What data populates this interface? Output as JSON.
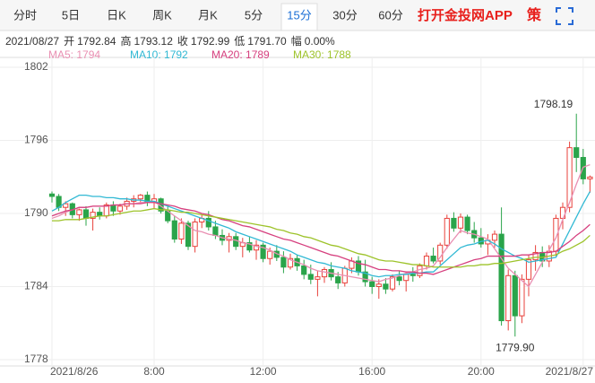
{
  "chart_data": {
    "type": "candlestick",
    "tabs": [
      "分时",
      "5日",
      "日K",
      "周K",
      "月K",
      "5分",
      "15分",
      "30分",
      "60分"
    ],
    "active_tab": 6,
    "brand": "打开金投网APP",
    "strategy": "策",
    "info": {
      "date": "2021/08/27",
      "items": [
        {
          "label": "开",
          "value": "1792.84"
        },
        {
          "label": "高",
          "value": "1793.12"
        },
        {
          "label": "收",
          "value": "1792.99"
        },
        {
          "label": "低",
          "value": "1791.70"
        },
        {
          "label": "幅",
          "value": "0.00%"
        }
      ]
    },
    "up_color": "#e8413b",
    "down_color": "#2aa44a",
    "ylim": [
      1778,
      1802
    ],
    "yticks": [
      1778,
      1784,
      1790,
      1796,
      1802
    ],
    "grid": true,
    "categories": [
      "2021/8/26",
      null,
      null,
      null,
      null,
      null,
      null,
      null,
      null,
      null,
      null,
      null,
      null,
      null,
      null,
      "8:00",
      null,
      null,
      null,
      null,
      null,
      null,
      null,
      null,
      null,
      null,
      null,
      null,
      null,
      null,
      null,
      "12:00",
      null,
      null,
      null,
      null,
      null,
      null,
      null,
      null,
      null,
      null,
      null,
      null,
      null,
      null,
      null,
      "16:00",
      null,
      null,
      null,
      null,
      null,
      null,
      null,
      null,
      null,
      null,
      null,
      null,
      null,
      null,
      null,
      "20:00",
      null,
      null,
      null,
      null,
      null,
      null,
      null,
      null,
      null,
      null,
      null,
      null,
      null,
      null,
      "2021/8/27",
      null
    ],
    "ohlc": [
      [
        1791.6,
        1791.8,
        1790.9,
        1791.4
      ],
      [
        1791.4,
        1791.6,
        1790.2,
        1790.5
      ],
      [
        1790.5,
        1791.0,
        1789.8,
        1790.8
      ],
      [
        1790.8,
        1790.9,
        1789.6,
        1789.9
      ],
      [
        1789.9,
        1790.4,
        1789.4,
        1790.3
      ],
      [
        1790.3,
        1790.6,
        1789.0,
        1789.6
      ],
      [
        1789.6,
        1790.4,
        1788.6,
        1790.1
      ],
      [
        1790.1,
        1790.5,
        1789.5,
        1789.8
      ],
      [
        1789.8,
        1790.9,
        1789.6,
        1790.7
      ],
      [
        1790.7,
        1791.0,
        1789.8,
        1790.2
      ],
      [
        1790.2,
        1790.8,
        1789.9,
        1790.6
      ],
      [
        1790.6,
        1791.3,
        1790.3,
        1791.0
      ],
      [
        1791.0,
        1791.5,
        1790.5,
        1791.2
      ],
      [
        1791.2,
        1791.6,
        1790.8,
        1791.5
      ],
      [
        1791.5,
        1791.8,
        1790.6,
        1790.9
      ],
      [
        1790.9,
        1791.6,
        1790.4,
        1791.2
      ],
      [
        1791.2,
        1791.3,
        1790.0,
        1790.2
      ],
      [
        1790.2,
        1790.6,
        1789.2,
        1789.4
      ],
      [
        1789.4,
        1789.8,
        1787.6,
        1787.9
      ],
      [
        1787.9,
        1789.6,
        1787.5,
        1789.2
      ],
      [
        1789.2,
        1789.4,
        1787.0,
        1787.3
      ],
      [
        1787.3,
        1789.6,
        1786.8,
        1789.3
      ],
      [
        1789.3,
        1789.9,
        1788.8,
        1789.6
      ],
      [
        1789.6,
        1790.2,
        1788.6,
        1788.9
      ],
      [
        1788.9,
        1789.4,
        1787.9,
        1788.2
      ],
      [
        1788.2,
        1788.7,
        1787.4,
        1787.8
      ],
      [
        1787.8,
        1788.4,
        1786.8,
        1788.1
      ],
      [
        1788.1,
        1788.4,
        1787.0,
        1787.3
      ],
      [
        1787.3,
        1788.0,
        1786.4,
        1787.6
      ],
      [
        1787.6,
        1788.1,
        1786.8,
        1787.0
      ],
      [
        1787.0,
        1787.8,
        1786.2,
        1787.4
      ],
      [
        1787.4,
        1787.6,
        1786.0,
        1786.3
      ],
      [
        1786.3,
        1787.2,
        1785.8,
        1786.9
      ],
      [
        1786.9,
        1787.4,
        1786.1,
        1786.4
      ],
      [
        1786.4,
        1786.9,
        1785.1,
        1785.6
      ],
      [
        1785.6,
        1786.7,
        1785.4,
        1786.3
      ],
      [
        1786.3,
        1786.6,
        1785.3,
        1785.7
      ],
      [
        1785.7,
        1786.2,
        1784.6,
        1785.0
      ],
      [
        1785.0,
        1785.8,
        1784.2,
        1784.6
      ],
      [
        1784.6,
        1785.3,
        1783.2,
        1784.8
      ],
      [
        1784.8,
        1785.6,
        1784.3,
        1785.4
      ],
      [
        1785.4,
        1786.0,
        1784.5,
        1784.8
      ],
      [
        1784.8,
        1785.2,
        1783.8,
        1784.3
      ],
      [
        1784.3,
        1785.7,
        1784.0,
        1785.5
      ],
      [
        1785.5,
        1786.4,
        1785.1,
        1786.1
      ],
      [
        1786.1,
        1786.5,
        1784.9,
        1785.2
      ],
      [
        1785.2,
        1786.2,
        1784.0,
        1784.4
      ],
      [
        1784.4,
        1784.8,
        1783.4,
        1784.0
      ],
      [
        1784.0,
        1784.6,
        1783.0,
        1784.2
      ],
      [
        1784.2,
        1784.7,
        1783.4,
        1783.8
      ],
      [
        1783.8,
        1785.0,
        1783.6,
        1784.8
      ],
      [
        1784.8,
        1785.3,
        1784.1,
        1784.5
      ],
      [
        1784.5,
        1785.2,
        1783.6,
        1785.0
      ],
      [
        1785.0,
        1785.6,
        1784.4,
        1784.9
      ],
      [
        1784.9,
        1785.9,
        1784.7,
        1785.7
      ],
      [
        1785.7,
        1786.8,
        1785.4,
        1786.5
      ],
      [
        1786.5,
        1787.2,
        1785.9,
        1786.1
      ],
      [
        1786.1,
        1787.6,
        1785.8,
        1787.4
      ],
      [
        1787.4,
        1789.9,
        1787.1,
        1789.6
      ],
      [
        1789.6,
        1790.1,
        1788.5,
        1788.8
      ],
      [
        1788.8,
        1790.0,
        1788.4,
        1789.7
      ],
      [
        1789.7,
        1789.9,
        1788.3,
        1788.6
      ],
      [
        1788.6,
        1789.3,
        1787.6,
        1788.0
      ],
      [
        1788.0,
        1788.8,
        1787.2,
        1787.5
      ],
      [
        1787.5,
        1788.3,
        1786.6,
        1787.8
      ],
      [
        1787.8,
        1788.6,
        1787.2,
        1788.3
      ],
      [
        1788.3,
        1790.5,
        1780.8,
        1781.2
      ],
      [
        1781.2,
        1785.4,
        1780.4,
        1784.9
      ],
      [
        1784.9,
        1785.3,
        1779.9,
        1781.6
      ],
      [
        1781.6,
        1785.0,
        1781.0,
        1784.6
      ],
      [
        1784.6,
        1786.6,
        1783.2,
        1786.2
      ],
      [
        1786.2,
        1787.4,
        1785.3,
        1786.8
      ],
      [
        1786.8,
        1787.3,
        1785.6,
        1786.1
      ],
      [
        1786.1,
        1787.4,
        1785.6,
        1786.9
      ],
      [
        1786.9,
        1789.9,
        1786.5,
        1789.6
      ],
      [
        1789.6,
        1790.9,
        1788.7,
        1790.5
      ],
      [
        1790.5,
        1795.9,
        1790.1,
        1795.4
      ],
      [
        1795.4,
        1798.19,
        1793.4,
        1794.6
      ],
      [
        1794.6,
        1795.3,
        1792.4,
        1792.84
      ],
      [
        1792.84,
        1793.12,
        1791.7,
        1792.99
      ]
    ],
    "annotations": [
      {
        "label": "1798.19"
      },
      {
        "label": "1779.90"
      }
    ],
    "series": [
      {
        "name": "MA5: 1794",
        "color": "#e98fb2",
        "values": [
          1789.6,
          1789.8,
          1790.1,
          1790.3,
          1790.5,
          1790.5,
          1790.6,
          1790.6,
          1790.6,
          1790.7,
          1790.7,
          1790.8,
          1790.8,
          1790.9,
          1790.9,
          1791.0,
          1790.6,
          1790.2,
          1789.8,
          1789.4,
          1789.0,
          1788.6,
          1788.5,
          1788.3,
          1788.2,
          1788.0,
          1787.9,
          1787.8,
          1787.6,
          1787.5,
          1787.3,
          1787.2,
          1787.0,
          1786.7,
          1786.5,
          1786.2,
          1786.0,
          1785.8,
          1785.5,
          1785.3,
          1785.2,
          1785.1,
          1785.0,
          1784.9,
          1784.8,
          1784.7,
          1784.6,
          1784.5,
          1784.4,
          1784.6,
          1784.7,
          1784.9,
          1785.1,
          1785.2,
          1785.4,
          1785.5,
          1785.7,
          1786.4,
          1787.2,
          1787.9,
          1788.6,
          1788.4,
          1788.3,
          1788.1,
          1787.9,
          1787.1,
          1786.3,
          1785.5,
          1785.0,
          1784.5,
          1784.0,
          1785.0,
          1786.0,
          1787.0,
          1788.0,
          1789.5,
          1790.9,
          1792.4,
          1793.8,
          1794.0
        ]
      },
      {
        "name": "MA10: 1792",
        "color": "#31b9d4",
        "values": [
          1790.2,
          1790.5,
          1790.9,
          1791.2,
          1791.5,
          1791.5,
          1791.4,
          1791.4,
          1791.3,
          1791.3,
          1791.2,
          1791.2,
          1791.1,
          1791.1,
          1791.0,
          1791.0,
          1790.8,
          1790.6,
          1790.4,
          1790.2,
          1790.0,
          1789.8,
          1789.6,
          1789.4,
          1789.2,
          1789.0,
          1788.8,
          1788.5,
          1788.3,
          1788.1,
          1787.9,
          1787.7,
          1787.5,
          1787.3,
          1787.1,
          1786.9,
          1786.6,
          1786.4,
          1786.2,
          1786.0,
          1785.9,
          1785.7,
          1785.6,
          1785.5,
          1785.3,
          1785.2,
          1785.1,
          1784.9,
          1784.8,
          1784.9,
          1784.9,
          1785.0,
          1785.0,
          1785.1,
          1785.1,
          1785.2,
          1785.2,
          1785.7,
          1786.2,
          1786.7,
          1787.2,
          1787.4,
          1787.5,
          1787.7,
          1787.8,
          1787.5,
          1787.1,
          1786.8,
          1786.5,
          1786.3,
          1786.0,
          1786.1,
          1786.2,
          1786.3,
          1786.4,
          1787.5,
          1788.6,
          1789.7,
          1790.8,
          1791.8
        ]
      },
      {
        "name": "MA20: 1789",
        "color": "#d6407f",
        "values": [
          1789.8,
          1790.0,
          1790.2,
          1790.3,
          1790.5,
          1790.5,
          1790.6,
          1790.6,
          1790.6,
          1790.7,
          1790.7,
          1790.8,
          1790.8,
          1790.8,
          1790.9,
          1790.9,
          1790.8,
          1790.7,
          1790.6,
          1790.4,
          1790.3,
          1790.2,
          1790.0,
          1789.9,
          1789.7,
          1789.5,
          1789.4,
          1789.2,
          1789.0,
          1788.9,
          1788.7,
          1788.5,
          1788.3,
          1788.1,
          1787.9,
          1787.8,
          1787.6,
          1787.4,
          1787.2,
          1787.0,
          1786.8,
          1786.6,
          1786.5,
          1786.3,
          1786.1,
          1785.9,
          1785.8,
          1785.6,
          1785.4,
          1785.4,
          1785.3,
          1785.3,
          1785.2,
          1785.2,
          1785.1,
          1785.1,
          1785.0,
          1785.2,
          1785.4,
          1785.6,
          1785.8,
          1786.0,
          1786.2,
          1786.3,
          1786.5,
          1786.5,
          1786.5,
          1786.5,
          1786.5,
          1786.6,
          1786.6,
          1786.7,
          1786.8,
          1786.8,
          1786.9,
          1787.3,
          1787.7,
          1788.2,
          1788.6,
          1789.1
        ]
      },
      {
        "name": "MA30: 1788",
        "color": "#9dc32a",
        "values": [
          1789.4,
          1789.4,
          1789.5,
          1789.5,
          1789.5,
          1789.6,
          1789.7,
          1789.8,
          1789.8,
          1789.9,
          1790.0,
          1790.1,
          1790.2,
          1790.2,
          1790.3,
          1790.4,
          1790.3,
          1790.3,
          1790.2,
          1790.1,
          1790.1,
          1790.0,
          1789.9,
          1789.8,
          1789.7,
          1789.6,
          1789.5,
          1789.4,
          1789.3,
          1789.2,
          1789.1,
          1789.0,
          1788.9,
          1788.7,
          1788.6,
          1788.4,
          1788.3,
          1788.1,
          1788.0,
          1787.8,
          1787.6,
          1787.4,
          1787.3,
          1787.1,
          1786.9,
          1786.7,
          1786.6,
          1786.4,
          1786.2,
          1786.1,
          1786.1,
          1786.0,
          1785.9,
          1785.8,
          1785.8,
          1785.7,
          1785.6,
          1785.6,
          1785.6,
          1785.6,
          1785.6,
          1785.7,
          1785.7,
          1785.8,
          1785.8,
          1785.9,
          1785.9,
          1786.0,
          1786.1,
          1786.2,
          1786.3,
          1786.4,
          1786.4,
          1786.5,
          1786.6,
          1786.9,
          1787.1,
          1787.4,
          1787.7,
          1788.2
        ]
      }
    ]
  }
}
